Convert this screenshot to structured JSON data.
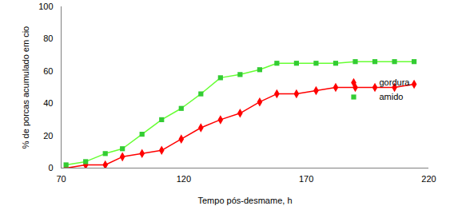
{
  "chart_data": {
    "type": "line",
    "x_label": "Tempo pós-desmame, h",
    "y_label": "% de porcas acumulado em cio",
    "x": [
      72,
      80,
      88,
      95,
      103,
      111,
      119,
      127,
      135,
      143,
      151,
      158,
      166,
      174,
      182,
      190,
      198,
      206,
      214
    ],
    "series": [
      {
        "name": "gordura",
        "color": "#ff0000",
        "marker": "diamond",
        "values": [
          0,
          2,
          2,
          7,
          9,
          11,
          18,
          25,
          30,
          34,
          41,
          46,
          46,
          48,
          50,
          50,
          50,
          50,
          52
        ]
      },
      {
        "name": "amido",
        "color": "#33cc33",
        "marker": "square",
        "values": [
          2,
          4,
          9,
          12,
          21,
          30,
          37,
          46,
          56,
          58,
          61,
          65,
          65,
          65,
          65,
          66,
          66,
          66,
          66
        ]
      }
    ],
    "xlim": [
      70,
      220
    ],
    "xticks": [
      70,
      120,
      170,
      220
    ],
    "ylim": [
      0,
      100
    ],
    "yticks": [
      0,
      20,
      40,
      60,
      80,
      100
    ],
    "grid": false,
    "legend": "right"
  }
}
